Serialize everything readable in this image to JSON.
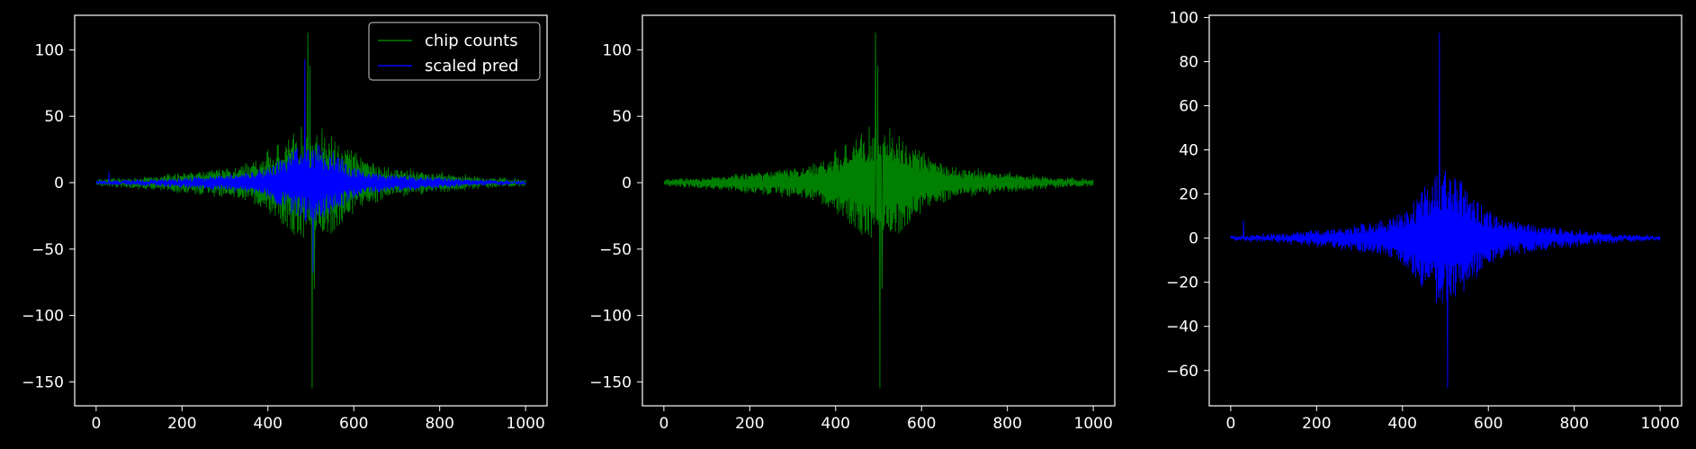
{
  "figure": {
    "background": "#000000",
    "foreground": "#ffffff"
  },
  "chart_data": [
    {
      "type": "line",
      "title": "",
      "xlabel": "",
      "ylabel": "",
      "xlim": [
        -50,
        1050
      ],
      "ylim": [
        -168,
        126
      ],
      "xticks": [
        0,
        200,
        400,
        600,
        800,
        1000
      ],
      "yticks": [
        -150,
        -100,
        -50,
        0,
        50,
        100
      ],
      "grid": false,
      "legend": {
        "position": "top-right",
        "entries": [
          "chip counts",
          "scaled pred"
        ]
      },
      "series": [
        {
          "name": "chip counts",
          "color": "#008000",
          "x_range": [
            0,
            1000
          ],
          "count": 1001,
          "peaks": [
            {
              "x": 493,
              "y": 113
            },
            {
              "x": 498,
              "y": 88
            },
            {
              "x": 503,
              "y": -155
            },
            {
              "x": 508,
              "y": -80
            }
          ],
          "core_amplitude": 30,
          "core_halfwidth": 70,
          "body_amplitude": 14,
          "body_halfwidth": 260,
          "noise": 1.2
        },
        {
          "name": "scaled pred",
          "color": "#0000ff",
          "x_range": [
            0,
            1000
          ],
          "count": 1001,
          "peaks": [
            {
              "x": 486,
              "y": 93
            },
            {
              "x": 505,
              "y": -68
            },
            {
              "x": 30,
              "y": 8
            }
          ],
          "core_amplitude": 22,
          "core_halfwidth": 55,
          "body_amplitude": 9,
          "body_halfwidth": 220,
          "noise": 0.9
        }
      ]
    },
    {
      "type": "line",
      "title": "",
      "xlabel": "",
      "ylabel": "",
      "xlim": [
        -50,
        1050
      ],
      "ylim": [
        -168,
        126
      ],
      "xticks": [
        0,
        200,
        400,
        600,
        800,
        1000
      ],
      "yticks": [
        -150,
        -100,
        -50,
        0,
        50,
        100
      ],
      "grid": false,
      "series": [
        {
          "color": "#008000",
          "x_range": [
            0,
            1000
          ],
          "count": 1001,
          "peaks": [
            {
              "x": 493,
              "y": 113
            },
            {
              "x": 498,
              "y": 88
            },
            {
              "x": 503,
              "y": -155
            },
            {
              "x": 508,
              "y": -80
            }
          ],
          "core_amplitude": 30,
          "core_halfwidth": 70,
          "body_amplitude": 14,
          "body_halfwidth": 260,
          "noise": 1.2
        }
      ]
    },
    {
      "type": "line",
      "title": "",
      "xlabel": "",
      "ylabel": "",
      "xlim": [
        -50,
        1050
      ],
      "ylim": [
        -76,
        101
      ],
      "xticks": [
        0,
        200,
        400,
        600,
        800,
        1000
      ],
      "yticks": [
        -60,
        -40,
        -20,
        0,
        20,
        40,
        60,
        80,
        100
      ],
      "grid": false,
      "series": [
        {
          "color": "#0000ff",
          "x_range": [
            0,
            1000
          ],
          "count": 1001,
          "peaks": [
            {
              "x": 486,
              "y": 93
            },
            {
              "x": 505,
              "y": -68
            },
            {
              "x": 30,
              "y": 8
            }
          ],
          "core_amplitude": 22,
          "core_halfwidth": 55,
          "body_amplitude": 9,
          "body_halfwidth": 220,
          "noise": 0.9
        }
      ]
    }
  ]
}
